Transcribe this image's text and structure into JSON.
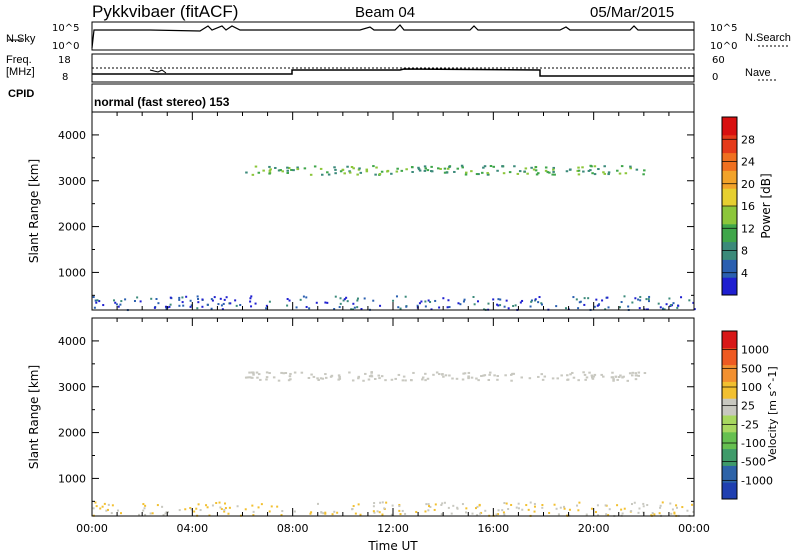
{
  "header": {
    "station": "Pykkvibaer (fitACF)",
    "beam": "Beam 04",
    "date": "05/Mar/2015"
  },
  "panels": {
    "nsky_label": "N.Sky",
    "nsky_ticks": [
      "10^5",
      "10^0"
    ],
    "nsearch_label": "N.Search",
    "nsearch_ticks": [
      "10^5",
      "10^0"
    ],
    "freq_label": "Freq.",
    "freq_unit": "[MHz]",
    "freq_ticks": [
      "18",
      "8"
    ],
    "nave_label": "Nave",
    "nave_ticks": [
      "60",
      "0"
    ],
    "cpid_label": "CPID",
    "cpid_text": "normal (fast stereo) 153"
  },
  "colors": {
    "power": [
      "#1f1fd0",
      "#2a5fb0",
      "#3b8a7a",
      "#3fa64a",
      "#8cc63a",
      "#e6cf30",
      "#f2a32a",
      "#f07020",
      "#e53a1a",
      "#d81010"
    ],
    "velocity": [
      "#1f3fb0",
      "#2d63a8",
      "#3f9b6a",
      "#66c050",
      "#a8d860",
      "#c8c8c0",
      "#f2c030",
      "#f29030",
      "#ee5a22",
      "#d81818"
    ]
  },
  "chart_data": [
    {
      "type": "heatmap",
      "name": "power",
      "ylabel": "Slant Range [km]",
      "colorbar_label": "Power [dB]",
      "colorbar_ticks": [
        "28",
        "24",
        "20",
        "16",
        "12",
        "8",
        "4"
      ],
      "ylim": [
        180,
        4500
      ],
      "yticks": [
        "4000",
        "3000",
        "2000",
        "1000"
      ],
      "xticks": [
        "00:00",
        "04:00",
        "08:00",
        "12:00",
        "16:00",
        "20:00",
        "00:00"
      ],
      "xlim_hours": [
        0,
        24
      ]
    },
    {
      "type": "heatmap",
      "name": "velocity",
      "ylabel": "Slant Range [km]",
      "colorbar_label": "Velocity [m s^-1]",
      "colorbar_ticks": [
        "1000",
        "500",
        "100",
        "25",
        "-25",
        "-100",
        "-500",
        "-1000"
      ],
      "ylim": [
        180,
        4500
      ],
      "yticks": [
        "4000",
        "3000",
        "2000",
        "1000"
      ],
      "xticks": [
        "00:00",
        "04:00",
        "08:00",
        "12:00",
        "16:00",
        "20:00",
        "00:00"
      ],
      "xlabel": "Time UT",
      "xlim_hours": [
        0,
        24
      ]
    }
  ]
}
